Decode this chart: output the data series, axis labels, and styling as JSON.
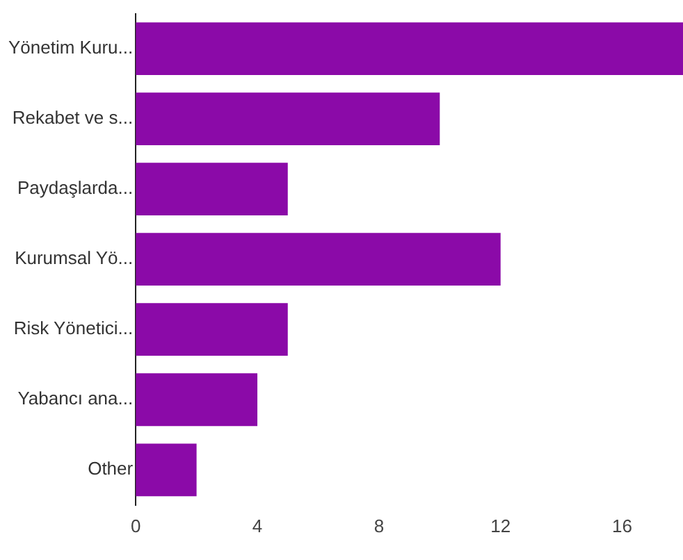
{
  "chart_data": {
    "type": "bar",
    "orientation": "horizontal",
    "categories": [
      "Yönetim Kuru...",
      "Rekabet ve s...",
      "Paydaşlarda...",
      "Kurumsal Yö...",
      "Risk Yönetici...",
      "Yabancı ana...",
      "Other"
    ],
    "values": [
      18,
      10,
      5,
      12,
      5,
      4,
      2
    ],
    "color": "#8b0aa8",
    "xlim": [
      0,
      18
    ],
    "xticks": [
      0,
      4,
      8,
      12,
      16
    ],
    "grid": false,
    "legend": false
  }
}
